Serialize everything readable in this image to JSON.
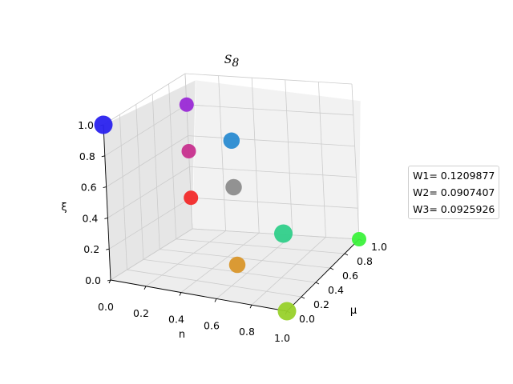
{
  "chart_data": {
    "type": "scatter",
    "title": "S",
    "title_subscript": "8",
    "xlabel": "n",
    "ylabel": "μ",
    "zlabel": "ξ",
    "xlim": [
      0,
      1
    ],
    "ylim": [
      0,
      1
    ],
    "zlim": [
      0,
      1
    ],
    "x_ticks": [
      "0.0",
      "0.2",
      "0.4",
      "0.6",
      "0.8",
      "1.0"
    ],
    "y_ticks": [
      "0.0",
      "0.2",
      "0.4",
      "0.6",
      "0.8",
      "1.0"
    ],
    "z_ticks": [
      "0.0",
      "0.2",
      "0.4",
      "0.6",
      "0.8",
      "1.0"
    ],
    "grid": true,
    "legend_position": "right",
    "legend": [
      "W1= 0.1209877",
      "W2= 0.0907407",
      "W3= 0.0925926"
    ],
    "points": [
      {
        "x": 0.0,
        "y": 1.0,
        "z": 0.2,
        "color": "#f22a2a"
      },
      {
        "x": 0.5,
        "y": 0.5,
        "z": 0.0,
        "color": "#d9962a"
      },
      {
        "x": 1.0,
        "y": 0.0,
        "z": 0.0,
        "color": "#98d12a"
      },
      {
        "x": 0.0,
        "y": 1.0,
        "z": 0.5,
        "color": "#c7308e"
      },
      {
        "x": 0.5,
        "y": 0.5,
        "z": 0.5,
        "color": "#8c8c8c"
      },
      {
        "x": 1.0,
        "y": 0.0,
        "z": 0.5,
        "color": "#30cf8a"
      },
      {
        "x": 0.0,
        "y": 1.0,
        "z": 0.8,
        "color": "#9a2ad6"
      },
      {
        "x": 0.5,
        "y": 0.5,
        "z": 0.8,
        "color": "#2a8bd1"
      },
      {
        "x": 0.0,
        "y": 0.0,
        "z": 1.0,
        "color": "#2a22ee"
      },
      {
        "x": 1.0,
        "y": 1.0,
        "z": 0.0,
        "color": "#3cf23c"
      }
    ]
  }
}
